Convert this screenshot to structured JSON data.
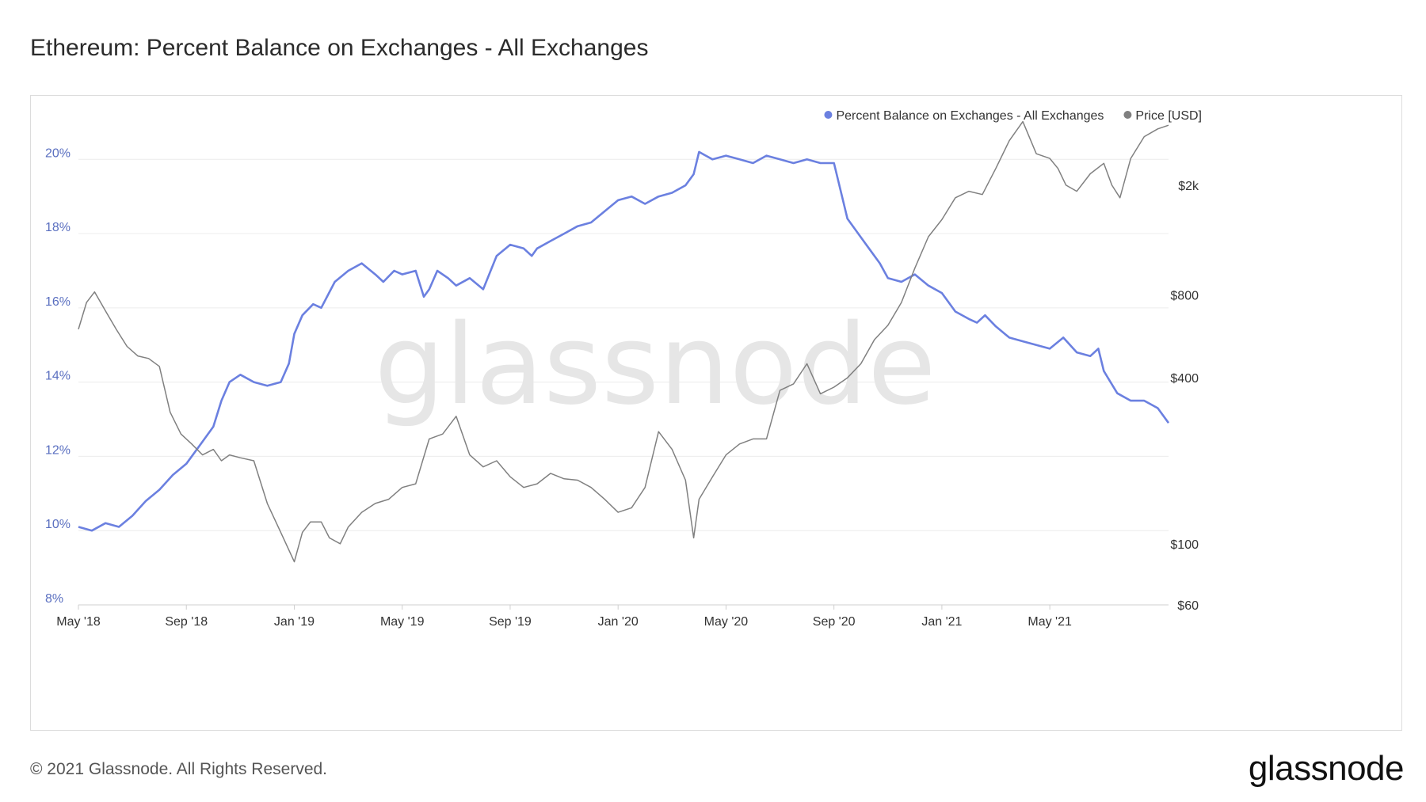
{
  "title": "Ethereum: Percent Balance on Exchanges - All Exchanges",
  "footer": {
    "copyright": "© 2021 Glassnode. All Rights Reserved.",
    "logo": "glassnode"
  },
  "watermark": "glassnode",
  "colors": {
    "balance": "#6b80e0",
    "price": "#808080",
    "left_axis_text": "#5a6fc0",
    "grid": "#ececec"
  },
  "chart_data": {
    "type": "line",
    "title": "Ethereum: Percent Balance on Exchanges - All Exchanges",
    "x_ticks": [
      "May '18",
      "Sep '18",
      "Jan '19",
      "May '19",
      "Sep '19",
      "Jan '20",
      "May '20",
      "Sep '20",
      "Jan '21",
      "May '21"
    ],
    "x_range": [
      0,
      40.4
    ],
    "x_unit": "months since May 2018",
    "y_left": {
      "ticks": [
        "8%",
        "10%",
        "12%",
        "14%",
        "16%",
        "18%",
        "20%"
      ],
      "values": [
        8,
        10,
        12,
        14,
        16,
        18,
        20
      ],
      "range": [
        8,
        21.2
      ]
    },
    "y_right": {
      "scale": "log",
      "ticks": [
        "$60",
        "$100",
        "$400",
        "$800",
        "$2k"
      ],
      "values": [
        60,
        100,
        400,
        800,
        2000
      ],
      "range": [
        60,
        3600
      ]
    },
    "legend": [
      {
        "label": "Percent Balance on Exchanges - All Exchanges",
        "color": "#6b80e0"
      },
      {
        "label": "Price [USD]",
        "color": "#808080"
      }
    ],
    "legend_position": "top-right",
    "series": [
      {
        "name": "Percent Balance on Exchanges - All Exchanges",
        "axis": "left",
        "x": [
          0,
          0.5,
          1,
          1.5,
          2,
          2.5,
          3,
          3.5,
          4,
          4.5,
          5,
          5.3,
          5.6,
          6,
          6.5,
          7,
          7.5,
          7.8,
          8,
          8.3,
          8.7,
          9,
          9.5,
          10,
          10.5,
          11,
          11.3,
          11.7,
          12,
          12.5,
          12.8,
          13,
          13.3,
          13.7,
          14,
          14.5,
          15,
          15.5,
          16,
          16.5,
          16.8,
          17,
          17.5,
          18,
          18.5,
          19,
          19.5,
          20,
          20.5,
          21,
          21.5,
          22,
          22.5,
          22.8,
          23,
          23.5,
          24,
          24.5,
          25,
          25.5,
          26,
          26.5,
          27,
          27.5,
          28,
          28.5,
          29,
          29.3,
          29.7,
          30,
          30.5,
          31,
          31.5,
          32,
          32.5,
          33,
          33.3,
          33.6,
          34,
          34.5,
          35,
          35.5,
          36,
          36.5,
          37,
          37.5,
          37.8,
          38,
          38.5,
          39,
          39.5,
          40,
          40.4
        ],
        "y": [
          10.1,
          10.0,
          10.2,
          10.1,
          10.4,
          10.8,
          11.1,
          11.5,
          11.8,
          12.3,
          12.8,
          13.5,
          14.0,
          14.2,
          14.0,
          13.9,
          14.0,
          14.5,
          15.3,
          15.8,
          16.1,
          16.0,
          16.7,
          17.0,
          17.2,
          16.9,
          16.7,
          17.0,
          16.9,
          17.0,
          16.3,
          16.5,
          17.0,
          16.8,
          16.6,
          16.8,
          16.5,
          17.4,
          17.7,
          17.6,
          17.4,
          17.6,
          17.8,
          18.0,
          18.2,
          18.3,
          18.6,
          18.9,
          19.0,
          18.8,
          19.0,
          19.1,
          19.3,
          19.6,
          20.2,
          20.0,
          20.1,
          20.0,
          19.9,
          20.1,
          20.0,
          19.9,
          20.0,
          19.9,
          19.9,
          18.4,
          17.9,
          17.6,
          17.2,
          16.8,
          16.7,
          16.9,
          16.6,
          16.4,
          15.9,
          15.7,
          15.6,
          15.8,
          15.5,
          15.2,
          15.1,
          15.0,
          14.9,
          15.2,
          14.8,
          14.7,
          14.9,
          14.3,
          13.7,
          13.5,
          13.5,
          13.3,
          12.9
        ]
      },
      {
        "name": "Price [USD]",
        "axis": "right",
        "x": [
          0,
          0.3,
          0.6,
          1,
          1.4,
          1.8,
          2.2,
          2.6,
          3,
          3.4,
          3.8,
          4.2,
          4.6,
          5,
          5.3,
          5.6,
          6,
          6.5,
          7,
          7.5,
          8,
          8.3,
          8.6,
          9,
          9.3,
          9.7,
          10,
          10.5,
          11,
          11.5,
          12,
          12.5,
          13,
          13.5,
          14,
          14.5,
          15,
          15.5,
          16,
          16.5,
          17,
          17.5,
          18,
          18.5,
          19,
          19.5,
          20,
          20.5,
          21,
          21.5,
          22,
          22.5,
          22.8,
          23,
          23.5,
          24,
          24.5,
          25,
          25.5,
          26,
          26.5,
          27,
          27.5,
          28,
          28.5,
          29,
          29.5,
          30,
          30.5,
          31,
          31.5,
          32,
          32.5,
          33,
          33.5,
          34,
          34.5,
          35,
          35.5,
          36,
          36.3,
          36.6,
          37,
          37.5,
          38,
          38.3,
          38.6,
          39,
          39.5,
          40,
          40.4
        ],
        "y": [
          600,
          750,
          820,
          700,
          600,
          520,
          480,
          470,
          440,
          300,
          250,
          230,
          210,
          220,
          200,
          210,
          205,
          200,
          140,
          110,
          86,
          110,
          120,
          120,
          105,
          100,
          115,
          130,
          140,
          145,
          160,
          165,
          240,
          250,
          290,
          210,
          190,
          200,
          175,
          160,
          165,
          180,
          172,
          170,
          160,
          145,
          130,
          135,
          160,
          255,
          220,
          170,
          105,
          145,
          175,
          210,
          230,
          240,
          240,
          360,
          380,
          450,
          350,
          370,
          400,
          450,
          550,
          620,
          750,
          1000,
          1300,
          1500,
          1800,
          1900,
          1850,
          2300,
          2900,
          3400,
          2600,
          2500,
          2300,
          2000,
          1900,
          2200,
          2400,
          2000,
          1800,
          2500,
          3000,
          3200,
          3300
        ]
      }
    ]
  }
}
